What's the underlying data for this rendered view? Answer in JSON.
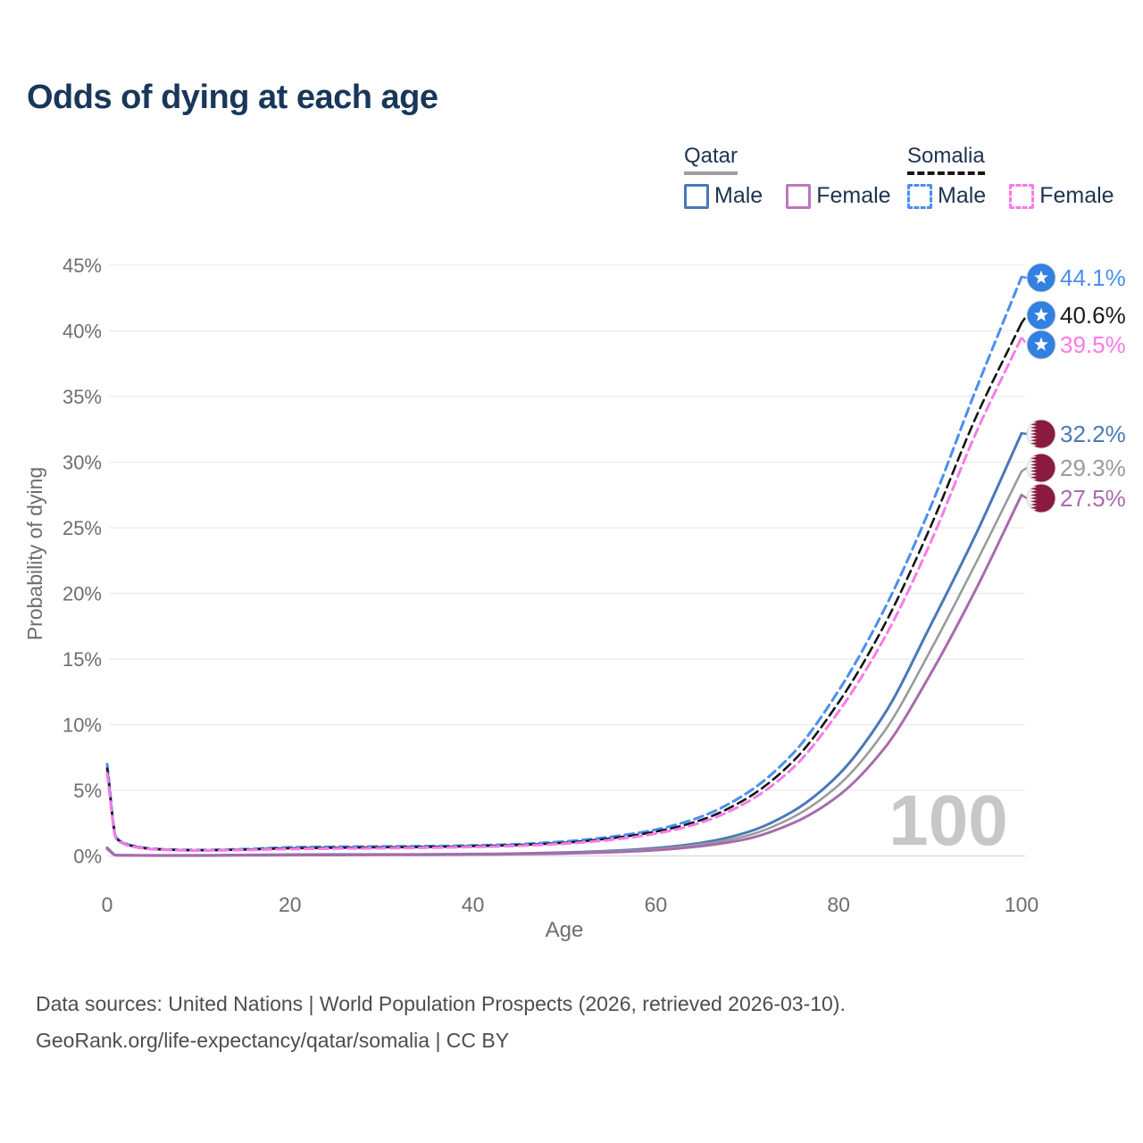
{
  "page": {
    "title": "Odds of dying at each age"
  },
  "legend": {
    "groups": [
      {
        "title": "Qatar",
        "line_style": "solid",
        "line_color": "#9e9e9e",
        "items": [
          {
            "label": "Male",
            "style": "solid",
            "color": "#4a78b8"
          },
          {
            "label": "Female",
            "style": "solid",
            "color": "#bb77bd"
          }
        ]
      },
      {
        "title": "Somalia",
        "line_style": "dashed",
        "line_color": "#151515",
        "items": [
          {
            "label": "Male",
            "style": "dashed",
            "color": "#4a8ef0"
          },
          {
            "label": "Female",
            "style": "dashed",
            "color": "#f97ae8"
          }
        ]
      }
    ]
  },
  "chart_data": {
    "type": "line",
    "title": "Odds of dying at each age",
    "xlabel": "Age",
    "ylabel": "Probability of dying",
    "xlim": [
      0,
      100
    ],
    "ylim_pct": [
      0,
      45
    ],
    "x_ticks": [
      0,
      20,
      40,
      60,
      80,
      100
    ],
    "y_tick_labels": [
      "0%",
      "5%",
      "10%",
      "15%",
      "20%",
      "25%",
      "30%",
      "35%",
      "40%",
      "45%"
    ],
    "grid": "horizontal",
    "legend_position": "top-right",
    "watermark": "100",
    "ages": [
      0,
      1,
      2,
      3,
      5,
      10,
      15,
      20,
      25,
      30,
      35,
      40,
      45,
      50,
      55,
      60,
      65,
      70,
      75,
      80,
      85,
      90,
      95,
      100
    ],
    "series": [
      {
        "name": "Somalia Male",
        "country": "Somalia",
        "sex": "Male",
        "style": "dashed",
        "color": "#4a8ef0",
        "label_color": "#4a8ef0",
        "end_label": "44.1%",
        "values": [
          7.0,
          1.4,
          0.95,
          0.75,
          0.55,
          0.45,
          0.52,
          0.65,
          0.7,
          0.72,
          0.75,
          0.8,
          0.9,
          1.1,
          1.45,
          2.0,
          3.0,
          4.8,
          7.8,
          12.6,
          18.8,
          26.5,
          35.5,
          44.1
        ]
      },
      {
        "name": "Somalia",
        "country": "Somalia",
        "sex": "Both",
        "style": "dashed",
        "color": "#141414",
        "label_color": "#1a1a1a",
        "end_label": "40.6%",
        "values": [
          6.65,
          1.35,
          0.9,
          0.72,
          0.52,
          0.43,
          0.48,
          0.58,
          0.62,
          0.65,
          0.68,
          0.74,
          0.83,
          1.0,
          1.33,
          1.85,
          2.75,
          4.4,
          7.2,
          11.7,
          17.6,
          25.0,
          33.4,
          40.6
        ]
      },
      {
        "name": "Somalia Female",
        "country": "Somalia",
        "sex": "Female",
        "style": "dashed",
        "color": "#f97ae8",
        "label_color": "#f97ae8",
        "end_label": "39.5%",
        "values": [
          6.3,
          1.3,
          0.87,
          0.68,
          0.5,
          0.41,
          0.45,
          0.52,
          0.56,
          0.58,
          0.62,
          0.68,
          0.77,
          0.93,
          1.22,
          1.7,
          2.55,
          4.1,
          6.7,
          11.0,
          16.6,
          23.8,
          32.2,
          39.5
        ]
      },
      {
        "name": "Qatar Male",
        "country": "Qatar",
        "sex": "Male",
        "style": "solid",
        "color": "#4a78b8",
        "label_color": "#4a78b8",
        "end_label": "32.2%",
        "values": [
          0.62,
          0.06,
          0.05,
          0.045,
          0.04,
          0.04,
          0.07,
          0.1,
          0.11,
          0.11,
          0.12,
          0.14,
          0.18,
          0.25,
          0.38,
          0.6,
          1.0,
          1.8,
          3.4,
          6.2,
          10.8,
          17.5,
          24.5,
          32.2
        ]
      },
      {
        "name": "Qatar",
        "country": "Qatar",
        "sex": "Both",
        "style": "solid",
        "color": "#9b9b9b",
        "label_color": "#9b9b9b",
        "end_label": "29.3%",
        "values": [
          0.58,
          0.055,
          0.045,
          0.04,
          0.035,
          0.035,
          0.06,
          0.08,
          0.09,
          0.1,
          0.11,
          0.13,
          0.16,
          0.22,
          0.33,
          0.52,
          0.88,
          1.55,
          2.95,
          5.4,
          9.5,
          15.6,
          22.3,
          29.3
        ]
      },
      {
        "name": "Qatar Female",
        "country": "Qatar",
        "sex": "Female",
        "style": "solid",
        "color": "#a86bad",
        "label_color": "#a86bad",
        "end_label": "27.5%",
        "values": [
          0.53,
          0.05,
          0.04,
          0.036,
          0.03,
          0.03,
          0.05,
          0.06,
          0.07,
          0.08,
          0.09,
          0.11,
          0.14,
          0.19,
          0.28,
          0.44,
          0.75,
          1.3,
          2.5,
          4.6,
          8.2,
          13.8,
          20.3,
          27.5
        ]
      }
    ]
  },
  "colors": {
    "title_text": "#18375a",
    "axis_text": "#6e6e6e",
    "grid_line": "#ededed",
    "zero_line": "#dddddd",
    "watermark": "#c7c7c7",
    "footer_text": "#4d4d4d",
    "somalia_flag_blue": "#3280e0",
    "qatar_flag_maroon": "#8a1a3f"
  },
  "footer": {
    "line1": "Data sources: United Nations | World Population Prospects (2026, retrieved 2026-03-10).",
    "line2": "GeoRank.org/life-expectancy/qatar/somalia | CC BY"
  }
}
